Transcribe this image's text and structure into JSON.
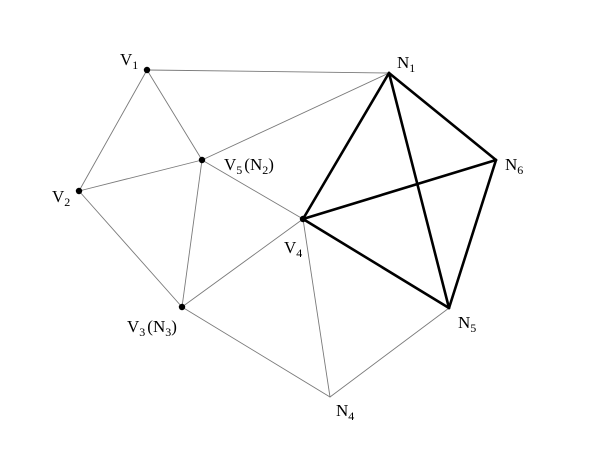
{
  "diagram": {
    "nodes": [
      {
        "id": "V1",
        "letter": "V",
        "sub": "1"
      },
      {
        "id": "V2",
        "letter": "V",
        "sub": "2"
      },
      {
        "id": "V3",
        "letter": "V",
        "sub": "3",
        "extra_letter": "N",
        "extra_sub": "3"
      },
      {
        "id": "V4",
        "letter": "V",
        "sub": "4"
      },
      {
        "id": "V5",
        "letter": "V",
        "sub": "5",
        "extra_letter": "N",
        "extra_sub": "2"
      },
      {
        "id": "N1",
        "letter": "N",
        "sub": "1"
      },
      {
        "id": "N4",
        "letter": "N",
        "sub": "4"
      },
      {
        "id": "N5",
        "letter": "N",
        "sub": "5"
      },
      {
        "id": "N6",
        "letter": "N",
        "sub": "6"
      }
    ],
    "edges": [
      {
        "from": "V1",
        "to": "N1",
        "bold": false
      },
      {
        "from": "V1",
        "to": "V2",
        "bold": false
      },
      {
        "from": "V1",
        "to": "V5",
        "bold": false
      },
      {
        "from": "V2",
        "to": "V5",
        "bold": false
      },
      {
        "from": "V2",
        "to": "V3",
        "bold": false
      },
      {
        "from": "V5",
        "to": "V3",
        "bold": false
      },
      {
        "from": "V5",
        "to": "N1",
        "bold": false
      },
      {
        "from": "V5",
        "to": "V4",
        "bold": false
      },
      {
        "from": "V3",
        "to": "V4",
        "bold": false
      },
      {
        "from": "V3",
        "to": "N4",
        "bold": false
      },
      {
        "from": "V4",
        "to": "N4",
        "bold": false
      },
      {
        "from": "N4",
        "to": "N5",
        "bold": false
      },
      {
        "from": "V4",
        "to": "N1",
        "bold": true
      },
      {
        "from": "V4",
        "to": "N6",
        "bold": true
      },
      {
        "from": "V4",
        "to": "N5",
        "bold": true
      },
      {
        "from": "N1",
        "to": "N6",
        "bold": true
      },
      {
        "from": "N1",
        "to": "N5",
        "bold": true
      },
      {
        "from": "N6",
        "to": "N5",
        "bold": true
      }
    ],
    "colors": {
      "background": "#ffffff",
      "thin_edge": "#7a7a7a",
      "bold_edge": "#000000",
      "vertex": "#000000",
      "label": "#000000"
    }
  }
}
